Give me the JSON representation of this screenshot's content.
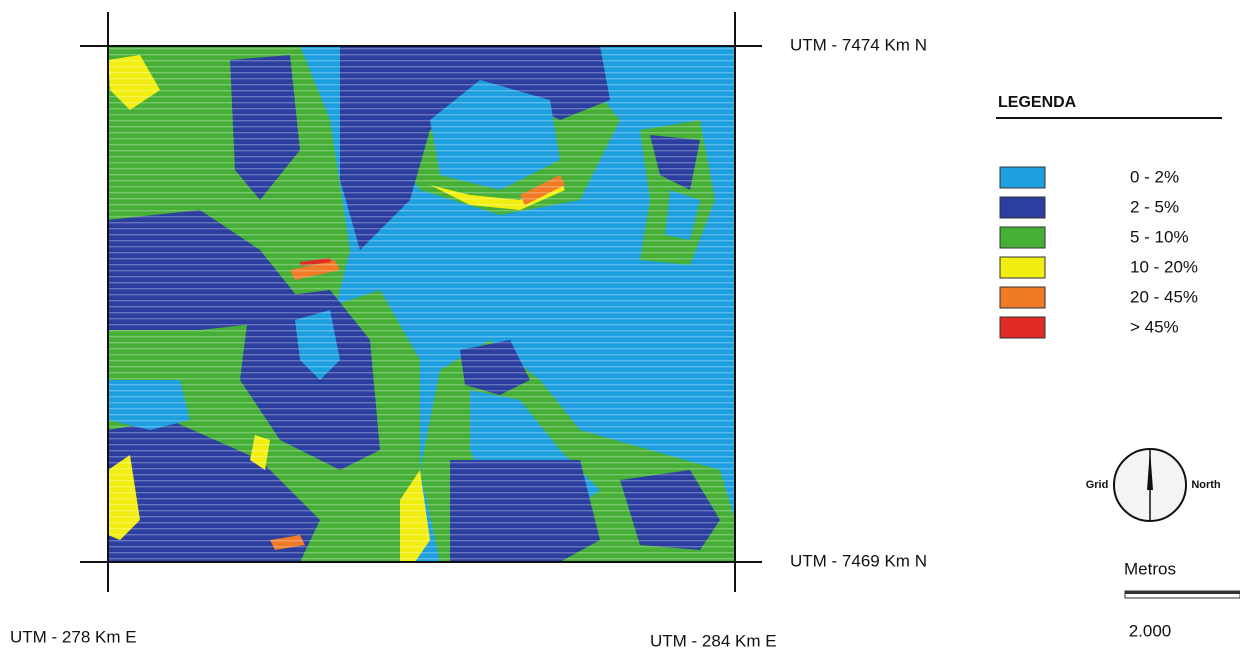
{
  "map": {
    "coordinates": {
      "north_top": "UTM - 7474 Km N",
      "north_bottom": "UTM - 7469 Km N",
      "east_left": "UTM - 278 Km E",
      "east_right": "UTM - 284 Km E"
    },
    "legend": {
      "title": "LEGENDA",
      "items": [
        {
          "label": "0 - 2%",
          "color": "#1d9fe0"
        },
        {
          "label": "2 - 5%",
          "color": "#2c3fa0"
        },
        {
          "label": "5 - 10%",
          "color": "#45b035"
        },
        {
          "label": "10 - 20%",
          "color": "#f2ee10"
        },
        {
          "label": "20 - 45%",
          "color": "#f07a25"
        },
        {
          "label": "> 45%",
          "color": "#e02a25"
        }
      ]
    },
    "north_arrow": {
      "left": "Grid",
      "right": "North"
    },
    "scale_bar": {
      "unit": "Metros",
      "length": "2.000"
    }
  }
}
